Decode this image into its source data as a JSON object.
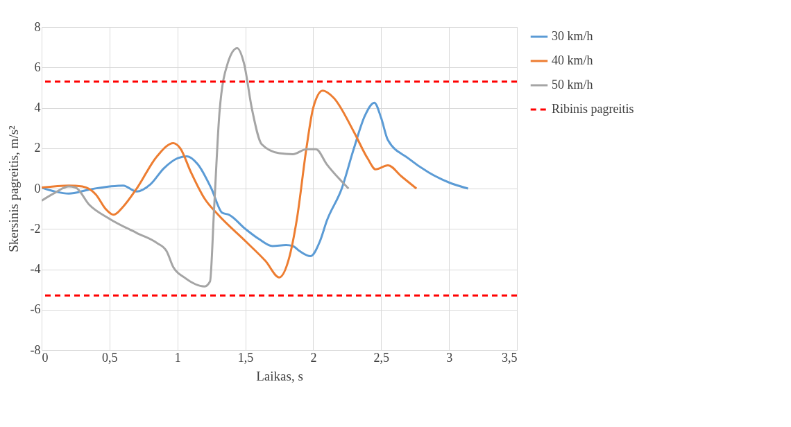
{
  "chart_data": {
    "type": "line",
    "xlabel": "Laikas, s",
    "ylabel": "Skersinis pagreitis, m/s²",
    "xlim": [
      0,
      3.5
    ],
    "ylim": [
      -8,
      8
    ],
    "xticks": [
      0,
      {
        "value": 0.5,
        "label": "0,5"
      },
      1,
      {
        "value": 1.5,
        "label": "1,5"
      },
      2,
      {
        "value": 2.5,
        "label": "2,5"
      },
      3,
      {
        "value": 3.5,
        "label": "3,5"
      }
    ],
    "yticks": [
      -8,
      -6,
      -4,
      -2,
      0,
      2,
      4,
      6,
      8
    ],
    "grid": true,
    "legend": "right",
    "line_style": "solid",
    "marker": "none",
    "series": [
      {
        "name": "30 km/h",
        "color": "#5b9bd5",
        "x": [
          0,
          0.1,
          0.2,
          0.35,
          0.5,
          0.6,
          0.7,
          0.8,
          0.9,
          1.0,
          1.07,
          1.15,
          1.25,
          1.33,
          1.38,
          1.5,
          1.6,
          1.7,
          1.8,
          1.85,
          1.9,
          1.98,
          2.05,
          2.1,
          2.21,
          2.3,
          2.38,
          2.45,
          2.5,
          2.55,
          2.7,
          2.85,
          3.0,
          3.14
        ],
        "values": [
          0.05,
          -0.15,
          -0.25,
          -0.05,
          0.1,
          0.15,
          -0.15,
          0.2,
          1.0,
          1.5,
          1.6,
          1.2,
          0,
          -1.2,
          -1.3,
          -2.0,
          -2.5,
          -2.85,
          -2.8,
          -2.85,
          -3.1,
          -3.35,
          -2.6,
          -1.6,
          0,
          2.0,
          3.6,
          4.25,
          3.5,
          2.4,
          1.5,
          0.8,
          0.3,
          0
        ]
      },
      {
        "name": "40 km/h",
        "color": "#ed7d31",
        "x": [
          0,
          0.2,
          0.3,
          0.4,
          0.47,
          0.53,
          0.6,
          0.7,
          0.85,
          0.97,
          1.02,
          1.1,
          1.2,
          1.3,
          1.5,
          1.65,
          1.75,
          1.82,
          1.88,
          1.95,
          2.0,
          2.07,
          2.15,
          2.3,
          2.4,
          2.46,
          2.55,
          2.65,
          2.76
        ],
        "values": [
          0.05,
          0.15,
          0.1,
          -0.3,
          -1.0,
          -1.3,
          -0.9,
          0,
          1.6,
          2.25,
          2.0,
          0.8,
          -0.5,
          -1.3,
          -2.6,
          -3.6,
          -4.4,
          -3.5,
          -1.5,
          2.0,
          4.0,
          4.85,
          4.5,
          2.8,
          1.5,
          0.95,
          1.15,
          0.6,
          0
        ]
      },
      {
        "name": "50 km/h",
        "color": "#a5a5a5",
        "x": [
          0,
          0.1,
          0.2,
          0.25,
          0.35,
          0.5,
          0.7,
          0.85,
          0.92,
          0.97,
          1.05,
          1.2,
          1.24,
          1.27,
          1.31,
          1.37,
          1.44,
          1.49,
          1.55,
          1.62,
          1.75,
          1.85,
          1.95,
          2.02,
          2.1,
          2.26
        ],
        "values": [
          -0.6,
          -0.2,
          0.1,
          0.05,
          -0.8,
          -1.5,
          -2.2,
          -2.7,
          -3.1,
          -3.9,
          -4.4,
          -4.85,
          -4.6,
          -1.0,
          3.8,
          6.2,
          6.95,
          6.2,
          3.9,
          2.2,
          1.75,
          1.7,
          1.95,
          1.95,
          1.2,
          0
        ]
      }
    ],
    "ref_lines": [
      {
        "axis": "y",
        "value": 5.3,
        "label": "Ribinis pagreitis",
        "color": "#ff0000",
        "line_style": "dashed"
      },
      {
        "axis": "y",
        "value": -5.3,
        "color": "#ff0000",
        "line_style": "dashed"
      }
    ]
  }
}
